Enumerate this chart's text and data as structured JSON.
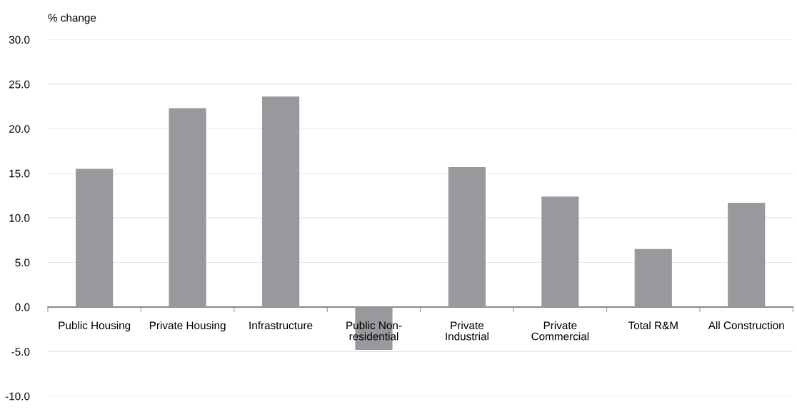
{
  "chart_data": {
    "type": "bar",
    "ylabel": "% change",
    "categories": [
      "Public Housing",
      "Private Housing",
      "Infrastructure",
      "Public Non-\nresidential",
      "Private\nIndustrial",
      "Private\nCommercial",
      "Total R&M",
      "All Construction"
    ],
    "values": [
      15.5,
      22.3,
      23.6,
      -4.8,
      15.7,
      12.4,
      6.5,
      11.7
    ],
    "color": "#98999d",
    "ylim": [
      -10,
      30
    ],
    "yticks": [
      {
        "value": -10,
        "label": "-10.0"
      },
      {
        "value": -5,
        "label": "-5.0"
      },
      {
        "value": 0,
        "label": "0.0"
      },
      {
        "value": 5,
        "label": "5.0"
      },
      {
        "value": 10,
        "label": "10.0"
      },
      {
        "value": 15,
        "label": "15.0"
      },
      {
        "value": 20,
        "label": "20.0"
      },
      {
        "value": 25,
        "label": "25.0"
      },
      {
        "value": 30,
        "label": "30.0"
      }
    ],
    "grid": "y"
  }
}
